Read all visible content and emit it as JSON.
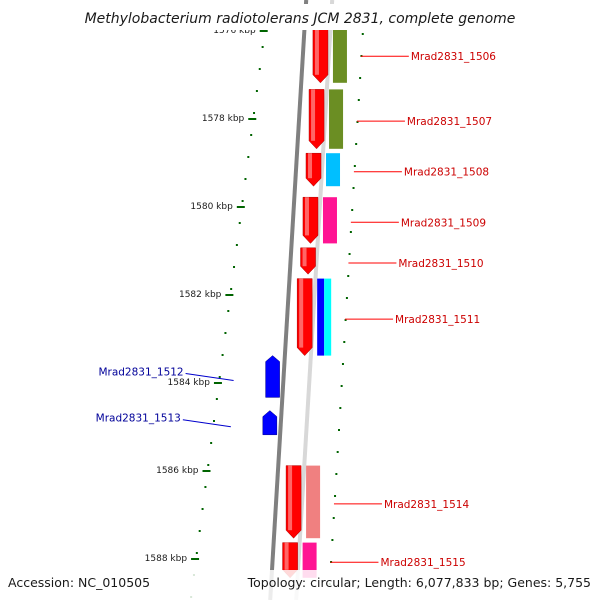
{
  "title": "Methylobacterium radiotolerans JCM 2831, complete genome",
  "footer": {
    "accession": "Accession: NC_010505",
    "summary": "Topology: circular; Length: 6,077,833 bp; Genes: 5,755"
  },
  "ruler": {
    "labels": [
      {
        "text": "1576 kbp",
        "kbp": 1576
      },
      {
        "text": "1578 kbp",
        "kbp": 1578
      },
      {
        "text": "1580 kbp",
        "kbp": 1580
      },
      {
        "text": "1582 kbp",
        "kbp": 1582
      },
      {
        "text": "1584 kbp",
        "kbp": 1584
      },
      {
        "text": "1586 kbp",
        "kbp": 1586
      },
      {
        "text": "1588 kbp",
        "kbp": 1588
      }
    ]
  },
  "genes": [
    {
      "label": "Mrad2831_1506",
      "strand": "forward",
      "start_kbp": 1575.9,
      "end_kbp": 1577.2,
      "cog_color": "#6b8e23"
    },
    {
      "label": "Mrad2831_1507",
      "strand": "forward",
      "start_kbp": 1577.35,
      "end_kbp": 1578.7,
      "cog_color": "#6b8e23"
    },
    {
      "label": "Mrad2831_1508",
      "strand": "forward",
      "start_kbp": 1578.8,
      "end_kbp": 1579.55,
      "cog_color": "#00bfff"
    },
    {
      "label": "Mrad2831_1509",
      "strand": "forward",
      "start_kbp": 1579.8,
      "end_kbp": 1580.85,
      "cog_color": "#ff1493"
    },
    {
      "label": "Mrad2831_1510",
      "strand": "forward",
      "start_kbp": 1580.95,
      "end_kbp": 1581.55,
      "cog_color": null
    },
    {
      "label": "Mrad2831_1511",
      "strand": "forward",
      "start_kbp": 1581.65,
      "end_kbp": 1583.4,
      "cog_color": "#0000ff|#00ffff"
    },
    {
      "label": "Mrad2831_1512",
      "strand": "reverse",
      "start_kbp": 1583.4,
      "end_kbp": 1584.35,
      "cog_color": null
    },
    {
      "label": "Mrad2831_1513",
      "strand": "reverse",
      "start_kbp": 1584.65,
      "end_kbp": 1585.2,
      "cog_color": null
    },
    {
      "label": "Mrad2831_1514",
      "strand": "forward",
      "start_kbp": 1585.9,
      "end_kbp": 1587.55,
      "cog_color": "#f08080"
    },
    {
      "label": "Mrad2831_1515",
      "strand": "forward",
      "start_kbp": 1587.65,
      "end_kbp": 1588.45,
      "cog_color": "#ff1493"
    }
  ],
  "colors": {
    "forward_gene": "#ff0000",
    "reverse_gene": "#0000ff",
    "forward_label": "#cc0000",
    "reverse_label": "#000099",
    "backbone": "#888888",
    "tick": "#006400"
  }
}
